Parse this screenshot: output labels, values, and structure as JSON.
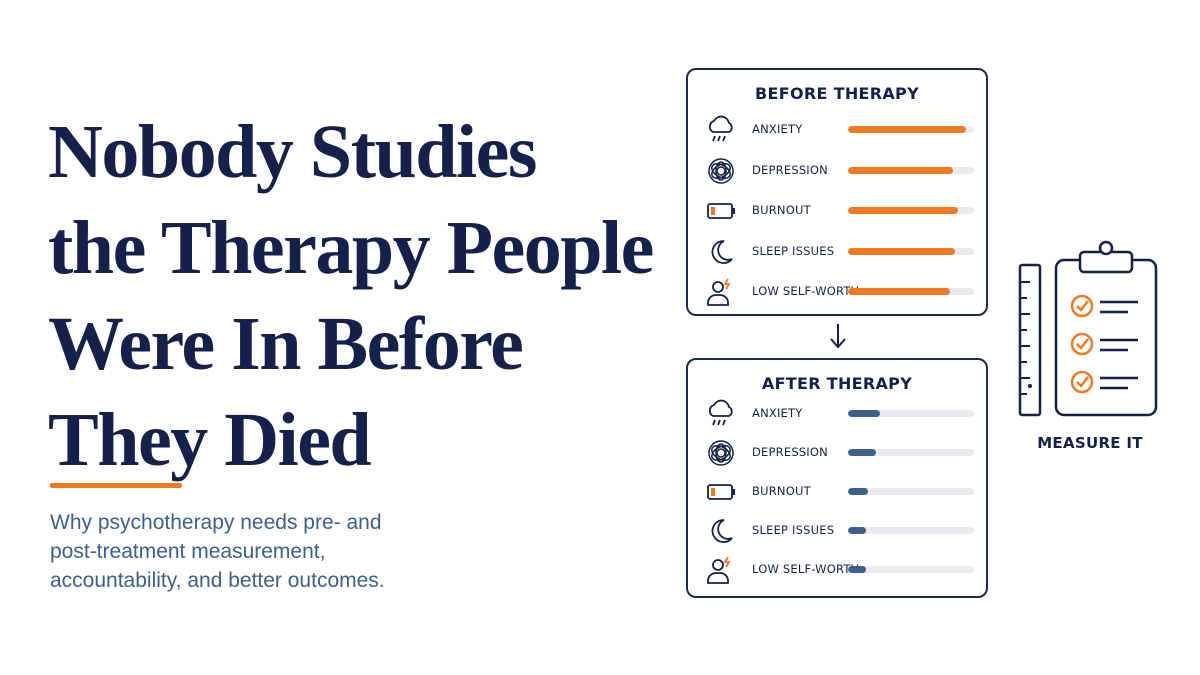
{
  "headline": {
    "lines": [
      "Nobody Studies",
      "the Therapy People",
      "Were In Before",
      "They Died"
    ]
  },
  "subtitle": {
    "lines": [
      "Why psychotherapy needs pre- and",
      "post-treatment measurement,",
      "accountability, and better outcomes."
    ]
  },
  "colors": {
    "accent": "#f07a24",
    "navy": "#15214a",
    "blue": "#3c5f8c"
  },
  "before_panel": {
    "title": "BEFORE THERAPY",
    "rows": [
      {
        "icon": "rain-cloud-icon",
        "label": "ANXIETY",
        "level": 0.94
      },
      {
        "icon": "tangle-icon",
        "label": "DEPRESSION",
        "level": 0.83
      },
      {
        "icon": "low-battery-icon",
        "label": "BURNOUT",
        "level": 0.87
      },
      {
        "icon": "moon-icon",
        "label": "SLEEP ISSUES",
        "level": 0.85
      },
      {
        "icon": "person-stress-icon",
        "label": "LOW SELF-WORTH",
        "level": 0.81
      }
    ]
  },
  "after_panel": {
    "title": "AFTER THERAPY",
    "rows": [
      {
        "icon": "rain-cloud-icon",
        "label": "ANXIETY",
        "level": 0.25
      },
      {
        "icon": "tangle-icon",
        "label": "DEPRESSION",
        "level": 0.22
      },
      {
        "icon": "low-battery-icon",
        "label": "BURNOUT",
        "level": 0.16
      },
      {
        "icon": "moon-icon",
        "label": "SLEEP ISSUES",
        "level": 0.14
      },
      {
        "icon": "person-stress-icon",
        "label": "LOW SELF-WORTH",
        "level": 0.14
      }
    ]
  },
  "measure": {
    "label": "MEASURE IT",
    "icon": "clipboard-checklist-icon"
  }
}
